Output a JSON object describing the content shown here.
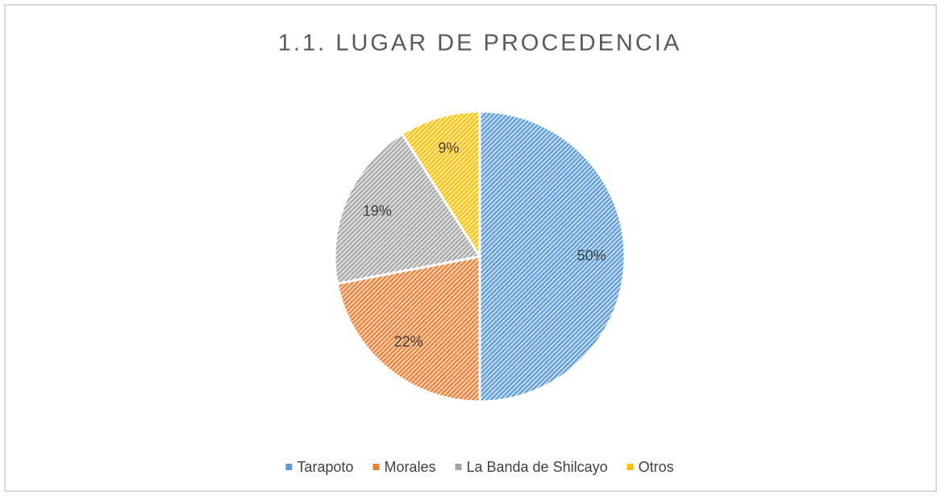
{
  "chart_data": {
    "type": "pie",
    "title": "1.1. LUGAR DE PROCEDENCIA",
    "categories": [
      "Tarapoto",
      "Morales",
      "La Banda de Shilcayo",
      "Otros"
    ],
    "values": [
      50,
      22,
      19,
      9
    ],
    "value_labels": [
      "50%",
      "22%",
      "19%",
      "9%"
    ],
    "colors": [
      "#5b9bd5",
      "#ed7d31",
      "#a5a5a5",
      "#ffc000"
    ],
    "legend": "bottom"
  }
}
